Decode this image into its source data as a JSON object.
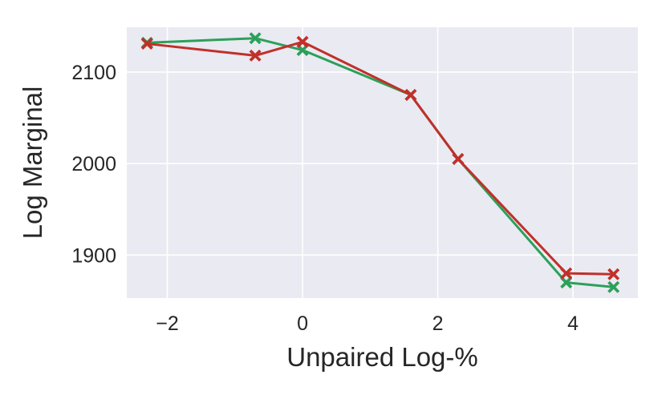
{
  "chart_data": {
    "type": "line",
    "title": "",
    "xlabel": "Unpaired Log-%",
    "ylabel": "Log Marginal",
    "xlim": [
      -2.6,
      4.96
    ],
    "ylim": [
      1853,
      2149
    ],
    "xticks": [
      -2,
      0,
      2,
      4
    ],
    "xtick_labels": [
      "−2",
      "0",
      "2",
      "4"
    ],
    "yticks": [
      1900,
      2000,
      2100
    ],
    "ytick_labels": [
      "1900",
      "2000",
      "2100"
    ],
    "grid": true,
    "legend": "none",
    "marker": "X",
    "series": [
      {
        "color": "#2ca05a",
        "x": [
          -2.3,
          -0.7,
          0.0,
          1.6,
          2.3,
          3.9,
          4.6
        ],
        "y": [
          2132,
          2137,
          2124,
          2075,
          2005,
          1870,
          1865
        ]
      },
      {
        "color": "#c1302a",
        "x": [
          -2.3,
          -0.7,
          0.0,
          1.6,
          2.3,
          3.9,
          4.6
        ],
        "y": [
          2131,
          2118,
          2133,
          2075,
          2005,
          1880,
          1879
        ]
      }
    ]
  }
}
